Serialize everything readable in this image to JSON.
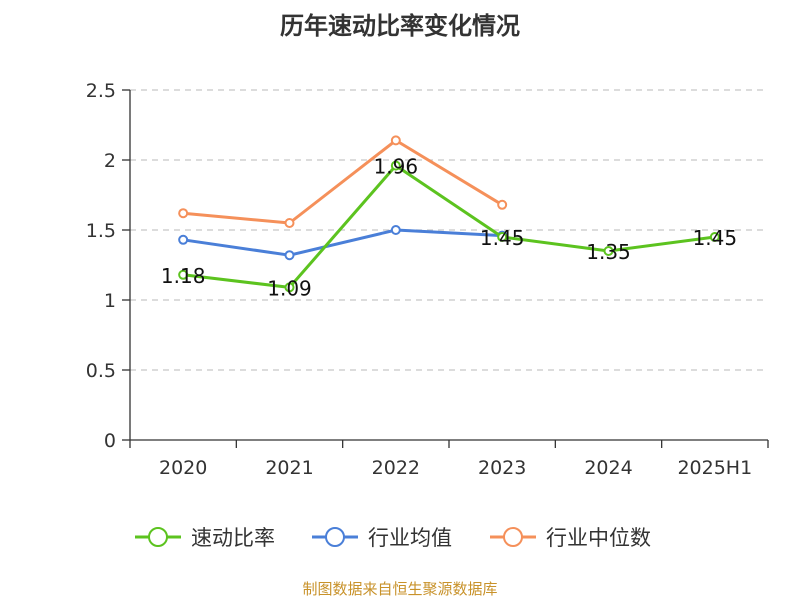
{
  "title": "历年速动比率变化情况",
  "source": "制图数据来自恒生聚源数据库",
  "chart_data": {
    "type": "line",
    "title": "历年速动比率变化情况",
    "categories": [
      "2020",
      "2021",
      "2022",
      "2023",
      "2024",
      "2025H1"
    ],
    "y_ticks": [
      "0",
      "0.5",
      "1",
      "1.5",
      "2",
      "2.5"
    ],
    "ylim": [
      0,
      2.5
    ],
    "grid": true,
    "legend_position": "bottom",
    "series": [
      {
        "name": "速动比率",
        "color": "#5cc31f",
        "values": [
          1.18,
          1.09,
          1.96,
          1.45,
          1.35,
          1.45
        ],
        "labels": [
          "1.18",
          "1.09",
          "1.96",
          "1.45",
          "1.35",
          "1.45"
        ]
      },
      {
        "name": "行业均值",
        "color": "#4a7fd8",
        "values": [
          1.43,
          1.32,
          1.5,
          1.46,
          null,
          null
        ]
      },
      {
        "name": "行业中位数",
        "color": "#f5905a",
        "values": [
          1.62,
          1.55,
          2.14,
          1.68,
          null,
          null
        ]
      }
    ]
  }
}
